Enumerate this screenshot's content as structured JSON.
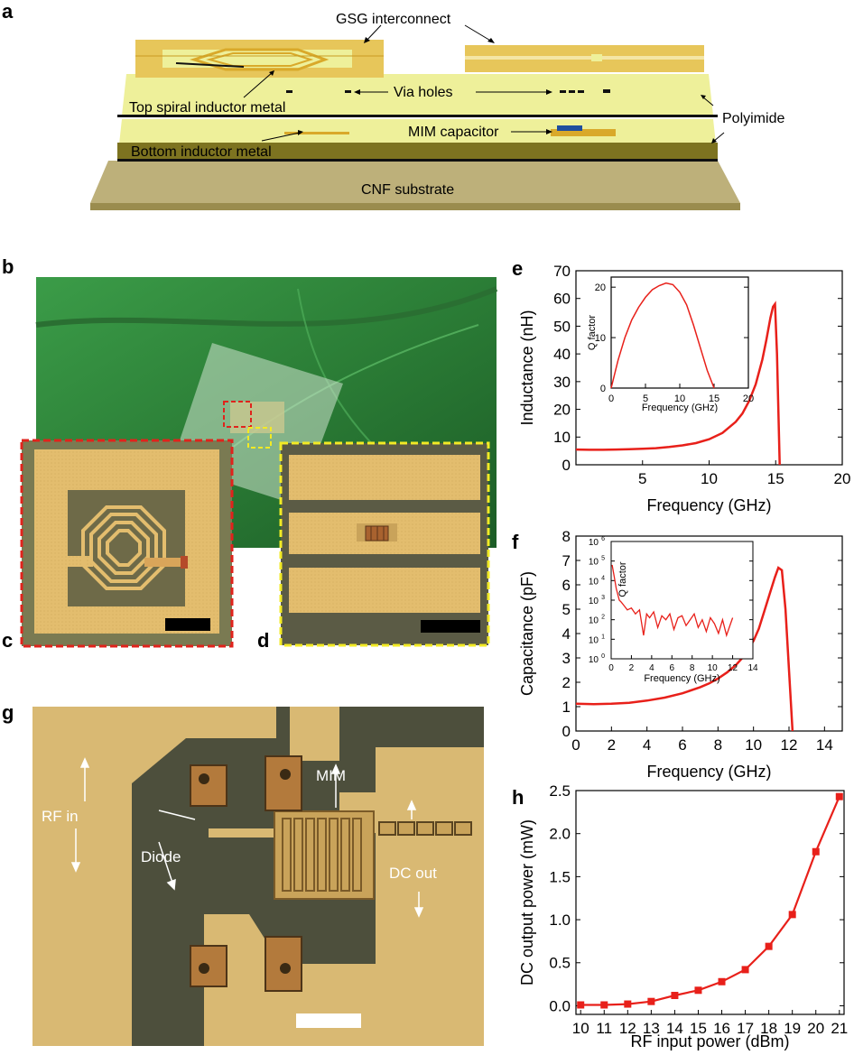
{
  "panel_letters": {
    "a": "a",
    "b": "b",
    "c": "c",
    "d": "d",
    "e": "e",
    "f": "f",
    "g": "g",
    "h": "h"
  },
  "schematic": {
    "gsg_label": "GSG interconnect",
    "via_label": "Via holes",
    "top_spiral_label": "Top spiral inductor metal",
    "polyimide_label": "Polyimide",
    "mim_label": "MIM capacitor",
    "bottom_inductor_label": "Bottom inductor metal",
    "substrate_label": "CNF substrate"
  },
  "micrograph": {
    "rf_in": "RF in",
    "diode": "Diode",
    "mim": "MIM",
    "dc_out": "DC out"
  },
  "colors": {
    "curve": "#e8201a",
    "leaf": "#2f8a3a",
    "gold": "#e7c65a",
    "dark_gold": "#7a6a1e",
    "polyimide": "#eef09a"
  },
  "chart_data": [
    {
      "id": "e",
      "type": "line",
      "xlabel": "Frequency (GHz)",
      "ylabel": "Inductance (nH)",
      "xlim": [
        0,
        20
      ],
      "ylim": [
        0,
        70
      ],
      "xticks": [
        "5",
        "10",
        "15",
        "20"
      ],
      "yticks": [
        "0",
        "10",
        "20",
        "30",
        "40",
        "50",
        "60",
        "70"
      ],
      "x": [
        0,
        1,
        2,
        3,
        4,
        5,
        6,
        7,
        8,
        9,
        10,
        11,
        12,
        12.5,
        13,
        13.5,
        14,
        14.3,
        14.6,
        14.8,
        14.95,
        15.1,
        15.3
      ],
      "y": [
        5.5,
        5.4,
        5.4,
        5.5,
        5.6,
        5.8,
        6.0,
        6.4,
        7.0,
        7.8,
        9.2,
        11.5,
        15.5,
        18.5,
        23,
        29,
        38,
        45,
        53,
        57,
        58,
        40,
        0
      ],
      "inset": {
        "xlabel": "Frequency (GHz)",
        "ylabel": "Q factor",
        "xlim": [
          0,
          20
        ],
        "ylim": [
          0,
          22
        ],
        "xticks": [
          "0",
          "5",
          "10",
          "15",
          "20"
        ],
        "yticks": [
          "0",
          "10",
          "20"
        ],
        "x": [
          0,
          1,
          2,
          3,
          4,
          5,
          6,
          7,
          8,
          9,
          10,
          11,
          12,
          13,
          14,
          15
        ],
        "y": [
          0,
          5.5,
          10,
          13.5,
          16,
          18,
          19.5,
          20.3,
          20.8,
          20.5,
          19,
          16.5,
          12.5,
          8,
          3.5,
          0
        ]
      }
    },
    {
      "id": "f",
      "type": "line",
      "xlabel": "Frequency (GHz)",
      "ylabel": "Capacitance (pF)",
      "xlim": [
        0,
        15
      ],
      "ylim": [
        0,
        8
      ],
      "xticks": [
        "0",
        "2",
        "4",
        "6",
        "8",
        "10",
        "12",
        "14"
      ],
      "yticks": [
        "0",
        "1",
        "2",
        "3",
        "4",
        "5",
        "6",
        "7",
        "8"
      ],
      "x": [
        0,
        1,
        2,
        3,
        4,
        5,
        6,
        7,
        7.5,
        8,
        8.5,
        9,
        9.5,
        10,
        10.3,
        10.6,
        10.9,
        11.2,
        11.4,
        11.6,
        11.8,
        12.0,
        12.2
      ],
      "y": [
        1.12,
        1.1,
        1.12,
        1.16,
        1.25,
        1.37,
        1.55,
        1.8,
        1.95,
        2.15,
        2.4,
        2.7,
        3.1,
        3.7,
        4.2,
        4.9,
        5.6,
        6.3,
        6.7,
        6.6,
        5.0,
        2.5,
        0
      ],
      "inset": {
        "xlabel": "Frequency (GHz)",
        "ylabel": "Q factor",
        "xlim": [
          0,
          14
        ],
        "ylim_log10": [
          0,
          6
        ],
        "xticks": [
          "0",
          "2",
          "4",
          "6",
          "8",
          "10",
          "12",
          "14"
        ],
        "yticks": [
          "10^0",
          "10^1",
          "10^2",
          "10^3",
          "10^4",
          "10^5",
          "10^6"
        ],
        "ytick_base": "10",
        "ytick_exps": [
          "0",
          "1",
          "2",
          "3",
          "4",
          "5",
          "6"
        ],
        "x": [
          0.1,
          0.3,
          0.5,
          0.8,
          1.0,
          1.3,
          1.6,
          2.0,
          2.4,
          2.8,
          3.2,
          3.5,
          3.8,
          4.2,
          4.6,
          5.0,
          5.4,
          5.8,
          6.2,
          6.6,
          7.0,
          7.4,
          7.8,
          8.2,
          8.6,
          9.0,
          9.4,
          9.8,
          10.2,
          10.6,
          11.0,
          11.4,
          11.8,
          12.0
        ],
        "log10y": [
          4.8,
          4.2,
          3.6,
          3.0,
          2.9,
          2.7,
          2.5,
          2.6,
          2.3,
          2.5,
          1.2,
          2.3,
          2.1,
          2.4,
          1.6,
          2.2,
          2.0,
          2.3,
          1.5,
          2.1,
          2.2,
          1.7,
          2.0,
          2.3,
          1.6,
          2.0,
          1.4,
          2.1,
          1.8,
          1.3,
          2.0,
          1.2,
          1.8,
          2.1
        ]
      }
    },
    {
      "id": "h",
      "type": "line",
      "markers": "square",
      "xlabel": "RF input power (dBm)",
      "ylabel": "DC output power (mW)",
      "xlim": [
        9.8,
        21.2
      ],
      "ylim": [
        -0.1,
        2.5
      ],
      "xticks": [
        "10",
        "11",
        "12",
        "13",
        "14",
        "15",
        "16",
        "17",
        "18",
        "19",
        "20",
        "21"
      ],
      "yticks": [
        "0.0",
        "0.5",
        "1.0",
        "1.5",
        "2.0",
        "2.5"
      ],
      "x": [
        10,
        11,
        12,
        13,
        14,
        15,
        16,
        17,
        18,
        19,
        20,
        21
      ],
      "y": [
        0.01,
        0.01,
        0.02,
        0.05,
        0.12,
        0.18,
        0.28,
        0.42,
        0.69,
        1.06,
        1.79,
        2.43
      ]
    }
  ]
}
